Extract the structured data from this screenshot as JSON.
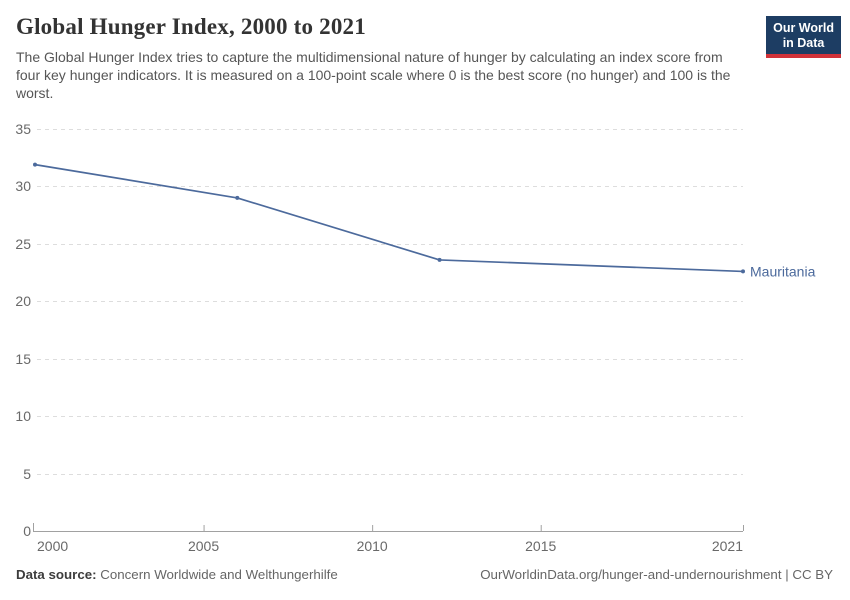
{
  "header": {
    "title": "Global Hunger Index, 2000 to 2021",
    "subtitle": "The Global Hunger Index tries to capture the multidimensional nature of hunger by calculating an index score from four key hunger indicators. It is measured on a 100-point scale where 0 is the best score (no hunger) and 100 is the worst.",
    "logo": {
      "line1": "Our World",
      "line2": "in Data"
    }
  },
  "chart_data": {
    "type": "line",
    "title": "Global Hunger Index, 2000 to 2021",
    "x": [
      2000,
      2006,
      2012,
      2021
    ],
    "series": [
      {
        "name": "Mauritania",
        "values": [
          31.9,
          29.0,
          23.6,
          22.6
        ],
        "color": "#4C6A9C"
      }
    ],
    "xlim": [
      2000,
      2021
    ],
    "ylim": [
      0,
      35
    ],
    "yticks": [
      0,
      5,
      10,
      15,
      20,
      25,
      30,
      35
    ],
    "xticks": [
      2000,
      2005,
      2010,
      2015,
      2021
    ],
    "xtick_labels": [
      "2000",
      "2005",
      "2010",
      "2015",
      "2021"
    ],
    "grid": "horizontal-dashed",
    "legend_position": "end-of-line-label"
  },
  "footer": {
    "data_source_label": "Data source:",
    "data_source_value": "Concern Worldwide and Welthungerhilfe",
    "attribution": "OurWorldinData.org/hunger-and-undernourishment | CC BY"
  },
  "colors": {
    "line": "#4C6A9C",
    "logo_bg": "#1d3d63",
    "logo_red": "#d13239",
    "grid": "#dddddd",
    "axis": "#a1a1a1",
    "tick_label": "#696969"
  }
}
